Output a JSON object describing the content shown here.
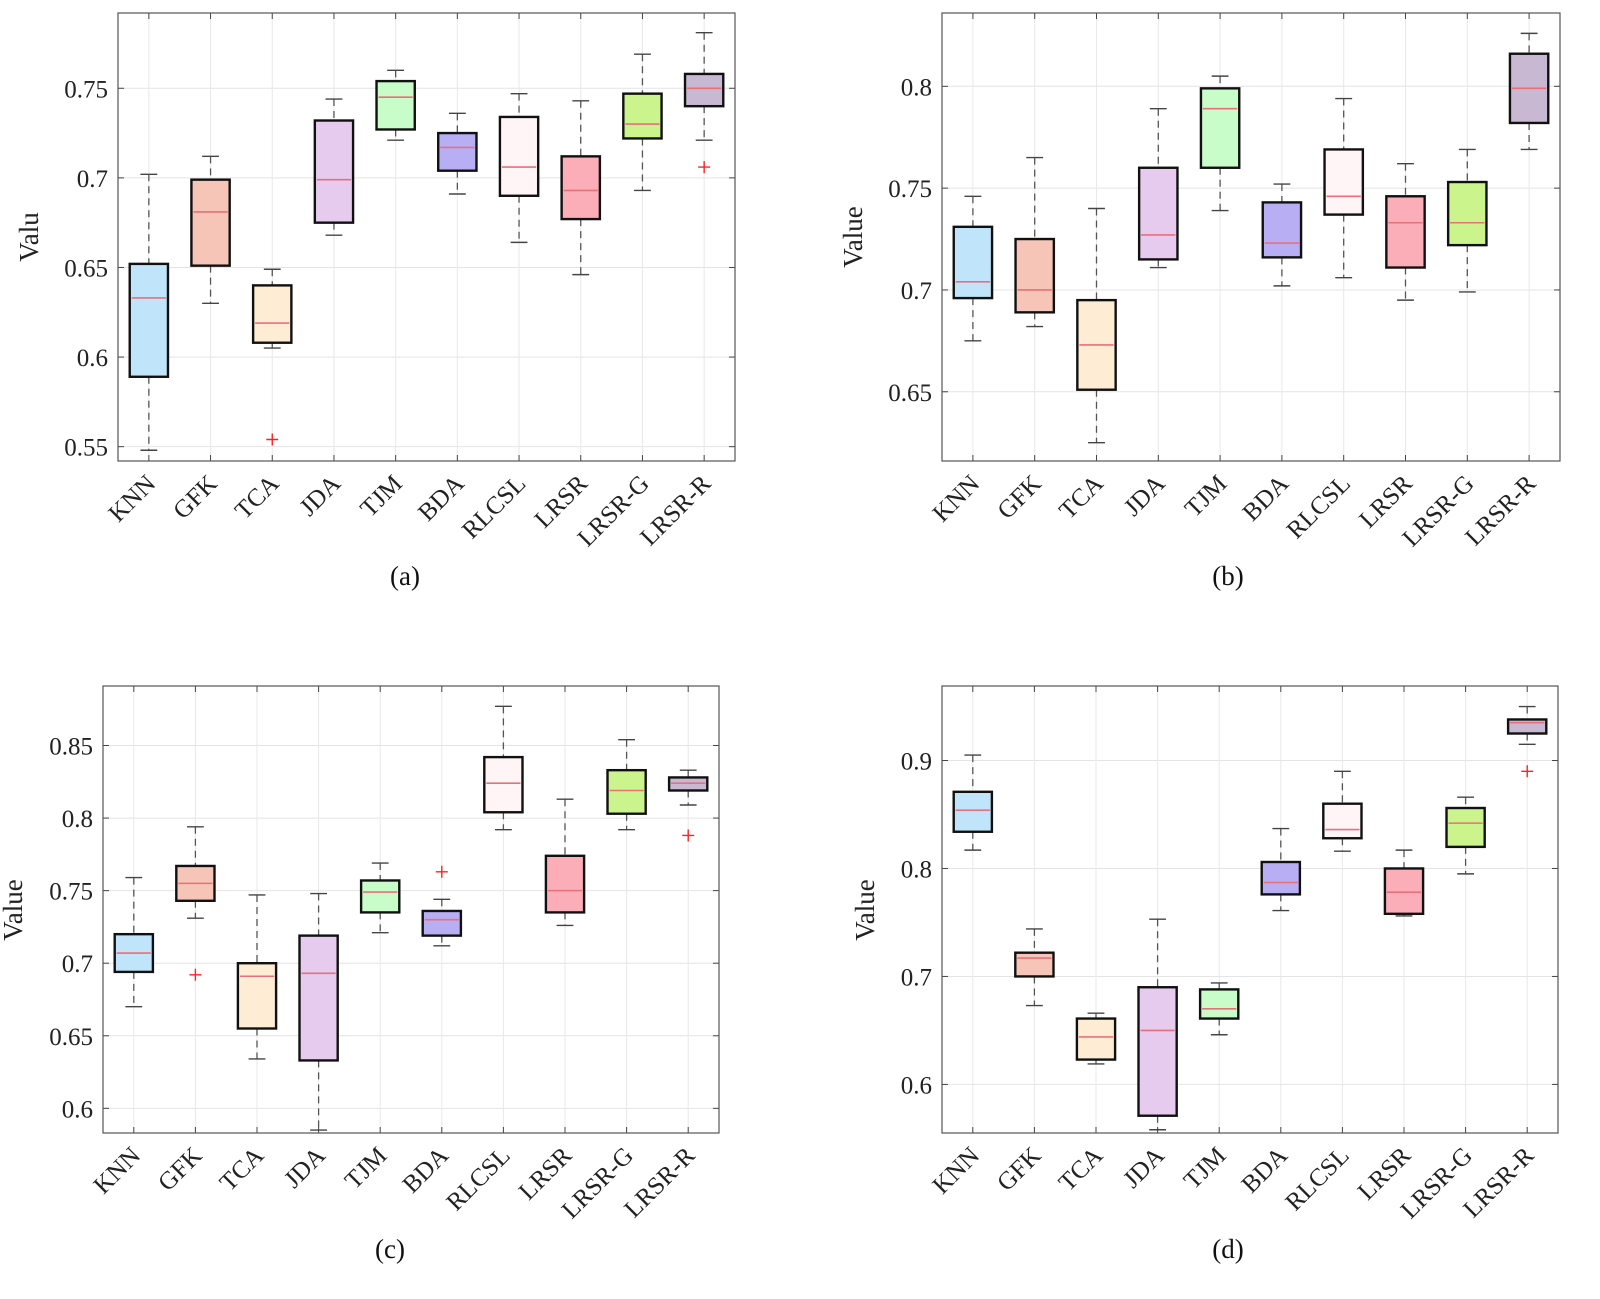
{
  "colors": {
    "KNN": "#c0e4fa",
    "GFK": "#f7c4b8",
    "TCA": "#feecd4",
    "JDA": "#e6cbee",
    "TJM": "#c8fcc8",
    "BDA": "#b8aef4",
    "RLCSL": "#fff4f6",
    "LRSR": "#fbaeb8",
    "LRSR-G": "#ccf48c",
    "LRSR-R": "#c8b8d2",
    "median": "#e8707a",
    "outlier": "#ff2020"
  },
  "chart_data": [
    {
      "type": "box",
      "caption": "(a)",
      "ylabel": "Valu",
      "grid": true,
      "ylim": [
        0.542,
        0.792
      ],
      "yticks": [
        "0.55",
        "0.6",
        "0.65",
        "0.7",
        "0.75"
      ],
      "categories": [
        "KNN",
        "GFK",
        "TCA",
        "JDA",
        "TJM",
        "BDA",
        "RLCSL",
        "LRSR",
        "LRSR-G",
        "LRSR-R"
      ],
      "boxes": [
        {
          "min": 0.548,
          "q1": 0.589,
          "median": 0.633,
          "q3": 0.652,
          "max": 0.702,
          "outliers": []
        },
        {
          "min": 0.63,
          "q1": 0.651,
          "median": 0.681,
          "q3": 0.699,
          "max": 0.712,
          "outliers": []
        },
        {
          "min": 0.605,
          "q1": 0.608,
          "median": 0.619,
          "q3": 0.64,
          "max": 0.649,
          "outliers": [
            0.554
          ]
        },
        {
          "min": 0.668,
          "q1": 0.675,
          "median": 0.699,
          "q3": 0.732,
          "max": 0.744,
          "outliers": []
        },
        {
          "min": 0.721,
          "q1": 0.727,
          "median": 0.745,
          "q3": 0.754,
          "max": 0.76,
          "outliers": []
        },
        {
          "min": 0.691,
          "q1": 0.704,
          "median": 0.717,
          "q3": 0.725,
          "max": 0.736,
          "outliers": []
        },
        {
          "min": 0.664,
          "q1": 0.69,
          "median": 0.706,
          "q3": 0.734,
          "max": 0.747,
          "outliers": []
        },
        {
          "min": 0.646,
          "q1": 0.677,
          "median": 0.693,
          "q3": 0.712,
          "max": 0.743,
          "outliers": []
        },
        {
          "min": 0.693,
          "q1": 0.722,
          "median": 0.73,
          "q3": 0.747,
          "max": 0.769,
          "outliers": []
        },
        {
          "min": 0.721,
          "q1": 0.74,
          "median": 0.75,
          "q3": 0.758,
          "max": 0.781,
          "outliers": [
            0.706
          ]
        }
      ]
    },
    {
      "type": "box",
      "caption": "(b)",
      "ylabel": "Value",
      "grid": true,
      "ylim": [
        0.616,
        0.836
      ],
      "yticks": [
        "0.65",
        "0.7",
        "0.75",
        "0.8"
      ],
      "categories": [
        "KNN",
        "GFK",
        "TCA",
        "JDA",
        "TJM",
        "BDA",
        "RLCSL",
        "LRSR",
        "LRSR-G",
        "LRSR-R"
      ],
      "boxes": [
        {
          "min": 0.675,
          "q1": 0.696,
          "median": 0.704,
          "q3": 0.731,
          "max": 0.746,
          "outliers": []
        },
        {
          "min": 0.682,
          "q1": 0.689,
          "median": 0.7,
          "q3": 0.725,
          "max": 0.765,
          "outliers": []
        },
        {
          "min": 0.625,
          "q1": 0.651,
          "median": 0.673,
          "q3": 0.695,
          "max": 0.74,
          "outliers": []
        },
        {
          "min": 0.711,
          "q1": 0.715,
          "median": 0.727,
          "q3": 0.76,
          "max": 0.789,
          "outliers": []
        },
        {
          "min": 0.739,
          "q1": 0.76,
          "median": 0.789,
          "q3": 0.799,
          "max": 0.805,
          "outliers": []
        },
        {
          "min": 0.702,
          "q1": 0.716,
          "median": 0.723,
          "q3": 0.743,
          "max": 0.752,
          "outliers": []
        },
        {
          "min": 0.706,
          "q1": 0.737,
          "median": 0.746,
          "q3": 0.769,
          "max": 0.794,
          "outliers": []
        },
        {
          "min": 0.695,
          "q1": 0.711,
          "median": 0.733,
          "q3": 0.746,
          "max": 0.762,
          "outliers": []
        },
        {
          "min": 0.699,
          "q1": 0.722,
          "median": 0.733,
          "q3": 0.753,
          "max": 0.769,
          "outliers": []
        },
        {
          "min": 0.769,
          "q1": 0.782,
          "median": 0.799,
          "q3": 0.816,
          "max": 0.826,
          "outliers": []
        }
      ]
    },
    {
      "type": "box",
      "caption": "(c)",
      "ylabel": "Value",
      "grid": true,
      "ylim": [
        0.583,
        0.891
      ],
      "yticks": [
        "0.6",
        "0.65",
        "0.7",
        "0.75",
        "0.8",
        "0.85"
      ],
      "categories": [
        "KNN",
        "GFK",
        "TCA",
        "JDA",
        "TJM",
        "BDA",
        "RLCSL",
        "LRSR",
        "LRSR-G",
        "LRSR-R"
      ],
      "boxes": [
        {
          "min": 0.67,
          "q1": 0.694,
          "median": 0.707,
          "q3": 0.72,
          "max": 0.759,
          "outliers": []
        },
        {
          "min": 0.731,
          "q1": 0.743,
          "median": 0.755,
          "q3": 0.767,
          "max": 0.794,
          "outliers": [
            0.692
          ]
        },
        {
          "min": 0.634,
          "q1": 0.655,
          "median": 0.691,
          "q3": 0.7,
          "max": 0.747,
          "outliers": []
        },
        {
          "min": 0.585,
          "q1": 0.633,
          "median": 0.693,
          "q3": 0.719,
          "max": 0.748,
          "outliers": []
        },
        {
          "min": 0.721,
          "q1": 0.735,
          "median": 0.749,
          "q3": 0.757,
          "max": 0.769,
          "outliers": []
        },
        {
          "min": 0.712,
          "q1": 0.719,
          "median": 0.73,
          "q3": 0.736,
          "max": 0.744,
          "outliers": [
            0.763
          ]
        },
        {
          "min": 0.792,
          "q1": 0.804,
          "median": 0.824,
          "q3": 0.842,
          "max": 0.877,
          "outliers": []
        },
        {
          "min": 0.726,
          "q1": 0.735,
          "median": 0.75,
          "q3": 0.774,
          "max": 0.813,
          "outliers": []
        },
        {
          "min": 0.792,
          "q1": 0.803,
          "median": 0.819,
          "q3": 0.833,
          "max": 0.854,
          "outliers": []
        },
        {
          "min": 0.809,
          "q1": 0.819,
          "median": 0.824,
          "q3": 0.828,
          "max": 0.833,
          "outliers": [
            0.788
          ]
        }
      ]
    },
    {
      "type": "box",
      "caption": "(d)",
      "ylabel": "Value",
      "grid": true,
      "ylim": [
        0.555,
        0.969
      ],
      "yticks": [
        "0.6",
        "0.7",
        "0.8",
        "0.9"
      ],
      "categories": [
        "KNN",
        "GFK",
        "TCA",
        "JDA",
        "TJM",
        "BDA",
        "RLCSL",
        "LRSR",
        "LRSR-G",
        "LRSR-R"
      ],
      "boxes": [
        {
          "min": 0.817,
          "q1": 0.834,
          "median": 0.854,
          "q3": 0.871,
          "max": 0.905,
          "outliers": []
        },
        {
          "min": 0.673,
          "q1": 0.7,
          "median": 0.717,
          "q3": 0.722,
          "max": 0.744,
          "outliers": []
        },
        {
          "min": 0.619,
          "q1": 0.623,
          "median": 0.644,
          "q3": 0.661,
          "max": 0.666,
          "outliers": []
        },
        {
          "min": 0.558,
          "q1": 0.571,
          "median": 0.65,
          "q3": 0.69,
          "max": 0.753,
          "outliers": []
        },
        {
          "min": 0.646,
          "q1": 0.661,
          "median": 0.67,
          "q3": 0.688,
          "max": 0.694,
          "outliers": []
        },
        {
          "min": 0.761,
          "q1": 0.776,
          "median": 0.787,
          "q3": 0.806,
          "max": 0.837,
          "outliers": []
        },
        {
          "min": 0.816,
          "q1": 0.828,
          "median": 0.836,
          "q3": 0.86,
          "max": 0.89,
          "outliers": []
        },
        {
          "min": 0.756,
          "q1": 0.758,
          "median": 0.778,
          "q3": 0.8,
          "max": 0.817,
          "outliers": []
        },
        {
          "min": 0.795,
          "q1": 0.82,
          "median": 0.842,
          "q3": 0.856,
          "max": 0.866,
          "outliers": []
        },
        {
          "min": 0.915,
          "q1": 0.925,
          "median": 0.935,
          "q3": 0.938,
          "max": 0.95,
          "outliers": [
            0.89
          ]
        }
      ]
    }
  ]
}
